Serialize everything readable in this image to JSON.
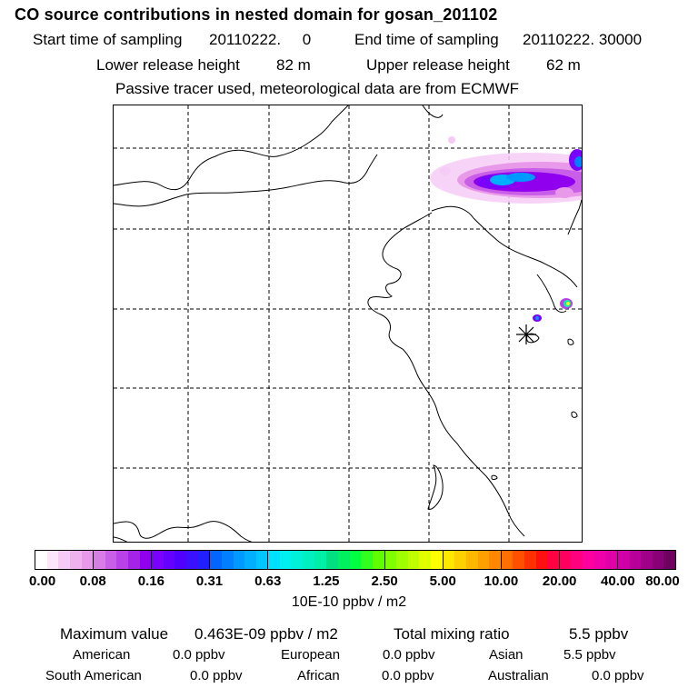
{
  "header": {
    "title": "CO  source contributions in nested domain for gosan_201102",
    "start_label": "Start time of sampling",
    "start_value": "20110222.     0",
    "end_label": "End time of sampling",
    "end_value": "20110222. 30000",
    "lower_label": "Lower release height",
    "lower_value": "82 m",
    "upper_label": "Upper release height",
    "upper_value": "62 m",
    "note": "Passive tracer used, meteorological data are from ECMWF"
  },
  "colorbar": {
    "ticks": [
      "0.00",
      "0.08",
      "0.16",
      "0.31",
      "0.63",
      "1.25",
      "2.50",
      "5.00",
      "10.00",
      "20.00",
      "40.00",
      "80.00"
    ],
    "units": "10E-10 ppbv / m2",
    "segments": [
      [
        "#ffffff",
        "#fbe6fb",
        "#f6ccf6",
        "#efb2ef",
        "#e999e9"
      ],
      [
        "#d87ce8",
        "#c95fe8",
        "#b842e8",
        "#a323e8",
        "#9000ee"
      ],
      [
        "#7a00ff",
        "#6400ff",
        "#4f00ff",
        "#3a10ff",
        "#2020ff"
      ],
      [
        "#0066ff",
        "#0080ff",
        "#0099ff",
        "#00b0ff",
        "#00c6ff"
      ],
      [
        "#00e0ff",
        "#00f0f0",
        "#00f0d8",
        "#00f0c0",
        "#00f0a8"
      ],
      [
        "#00e080",
        "#00f060",
        "#00ff40",
        "#30ff20",
        "#60ff00"
      ],
      [
        "#80ff00",
        "#a0ff00",
        "#c0ff00",
        "#e0ff00",
        "#ffff00"
      ],
      [
        "#ffe800",
        "#ffd000",
        "#ffb800",
        "#ffa000",
        "#ff8800"
      ],
      [
        "#ff7000",
        "#ff5000",
        "#ff3000",
        "#ff1010",
        "#ff0040"
      ],
      [
        "#ff0060",
        "#ff0080",
        "#ff00a0",
        "#f000a8",
        "#e000a8"
      ],
      [
        "#d000a8",
        "#b80098",
        "#a00088",
        "#880078",
        "#700060"
      ]
    ]
  },
  "stats": {
    "max_label": "Maximum value",
    "max_value": "0.463E-09 ppbv / m2",
    "total_label": "Total mixing ratio",
    "total_value": "5.5 ppbv",
    "regions": [
      {
        "name": "American",
        "value": "0.0 ppbv"
      },
      {
        "name": "European",
        "value": "0.0 ppbv"
      },
      {
        "name": "Asian",
        "value": "5.5 ppbv"
      },
      {
        "name": "South American",
        "value": "0.0 ppbv"
      },
      {
        "name": "African",
        "value": "0.0 ppbv"
      },
      {
        "name": "Australian",
        "value": "0.0 ppbv"
      }
    ]
  }
}
